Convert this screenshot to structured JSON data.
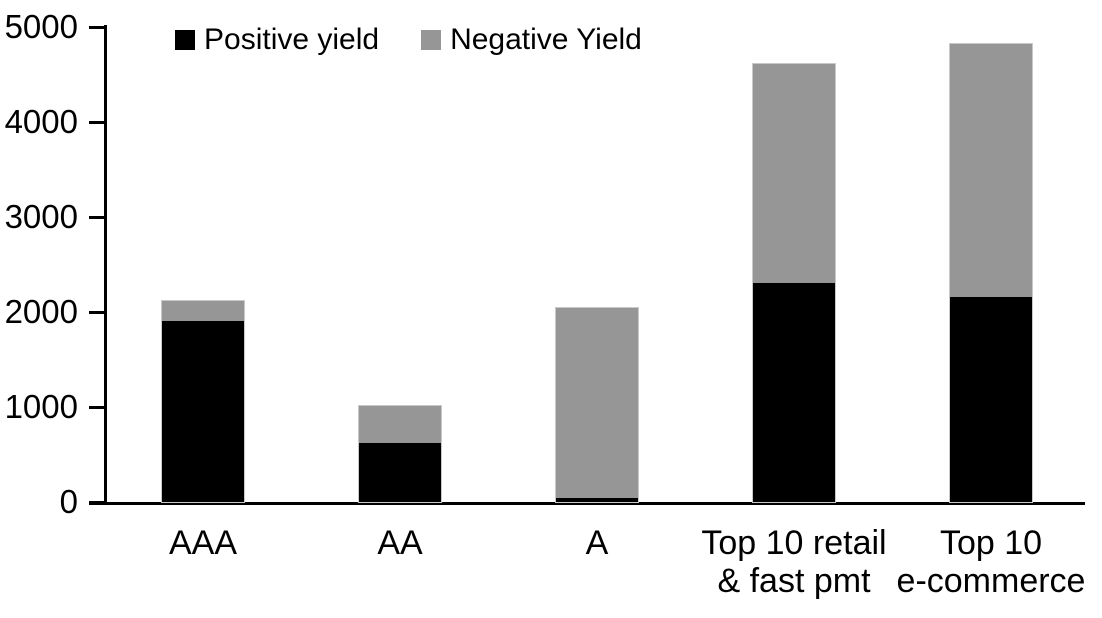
{
  "chart_data": {
    "type": "bar",
    "stacked": true,
    "title": "",
    "xlabel": "",
    "ylabel": "",
    "categories": [
      "AAA",
      "AA",
      "A",
      "Top 10 retail\n& fast pmt",
      "Top 10\ne-commerce"
    ],
    "series": [
      {
        "name": "Positive yield",
        "color": "#000000",
        "values": [
          1900,
          620,
          45,
          2300,
          2160
        ]
      },
      {
        "name": "Negative Yield",
        "color": "#969696",
        "values": [
          215,
          390,
          2000,
          2310,
          2660
        ]
      }
    ],
    "ylim": [
      0,
      5000
    ],
    "yticks": [
      0,
      1000,
      2000,
      3000,
      4000,
      5000
    ],
    "grid": false,
    "legend_position": "top-inside-left",
    "axis_color": "#000000",
    "bar_outline_color": "#c9c9c9",
    "background": "#ffffff"
  }
}
